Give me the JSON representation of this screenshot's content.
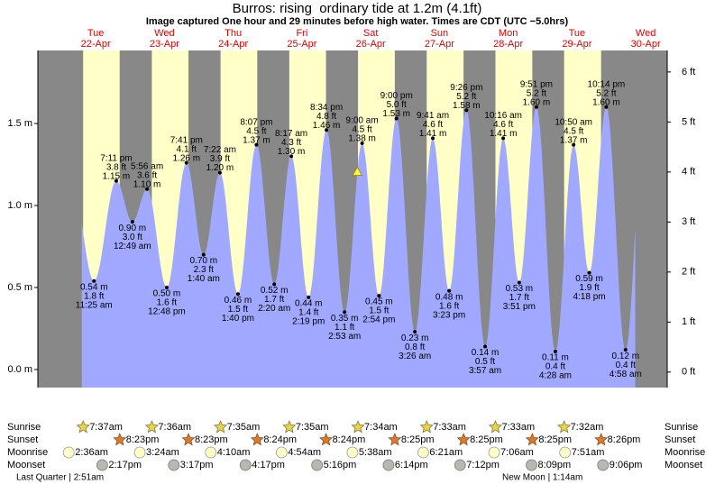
{
  "chart_data": {
    "type": "tide",
    "title": "Burros: rising  ordinary tide at 1.2m (4.1ft)",
    "subtitle": "Image captured One hour and 29 minutes before high water. Times are CDT (UTC −5.0hrs)",
    "current_m": 1.2,
    "ylim": [
      -0.11,
      1.945
    ],
    "yticks": [
      {
        "value": 0,
        "label": "0.0 m"
      },
      {
        "value": 0.5,
        "label": "0.5 m"
      },
      {
        "value": 1,
        "label": "1.0 m"
      },
      {
        "value": 1.5,
        "label": "1.5 m"
      }
    ],
    "y2lim": [
      -0.31,
      6.43
    ],
    "y2ticks": [
      {
        "value": 0,
        "label": "0 ft"
      },
      {
        "value": 1,
        "label": "1 ft"
      },
      {
        "value": 2,
        "label": "2 ft"
      },
      {
        "value": 3,
        "label": "3 ft"
      },
      {
        "value": 4,
        "label": "4 ft"
      },
      {
        "value": 5,
        "label": "5 ft"
      },
      {
        "value": 6,
        "label": "6 ft"
      }
    ],
    "row_labels": [
      "Sunrise",
      "Sunset",
      "Moonrise",
      "Moonset"
    ],
    "moon_phases": [
      "Last Quarter | 2:51am",
      "New Moon | 1:14am"
    ],
    "days": [
      {
        "name": "Tue",
        "date": "22-Apr",
        "sunrise": "7:37am",
        "sunset": "8:23pm",
        "moonrise": "2:36am",
        "moonset": "2:17pm",
        "extremes": [
          {
            "time": "11:25 am",
            "m": 0.54,
            "m_label": "0.54 m",
            "ft_label": "1.8 ft"
          },
          {
            "time": "7:11 pm",
            "m": 1.15,
            "m_label": "1.15 m",
            "ft_label": "3.8 ft"
          }
        ]
      },
      {
        "name": "Wed",
        "date": "23-Apr",
        "sunrise": "7:36am",
        "sunset": "8:23pm",
        "moonrise": "3:24am",
        "moonset": "3:17pm",
        "extremes": [
          {
            "time": "12:49 am",
            "m": 0.9,
            "m_label": "0.90 m",
            "ft_label": "3.0 ft"
          },
          {
            "time": "5:56 am",
            "m": 1.1,
            "m_label": "1.10 m",
            "ft_label": "3.6 ft"
          },
          {
            "time": "12:48 pm",
            "m": 0.5,
            "m_label": "0.50 m",
            "ft_label": "1.6 ft"
          },
          {
            "time": "7:41 pm",
            "m": 1.26,
            "m_label": "1.26 m",
            "ft_label": "4.1 ft"
          }
        ]
      },
      {
        "name": "Thu",
        "date": "24-Apr",
        "sunrise": "7:35am",
        "sunset": "8:24pm",
        "moonrise": "4:10am",
        "moonset": "4:17pm",
        "extremes": [
          {
            "time": "1:40 am",
            "m": 0.7,
            "m_label": "0.70 m",
            "ft_label": "2.3 ft"
          },
          {
            "time": "7:22 am",
            "m": 1.2,
            "m_label": "1.20 m",
            "ft_label": "3.9 ft"
          },
          {
            "time": "1:40 pm",
            "m": 0.46,
            "m_label": "0.46 m",
            "ft_label": "1.5 ft"
          },
          {
            "time": "8:07 pm",
            "m": 1.37,
            "m_label": "1.37 m",
            "ft_label": "4.5 ft"
          }
        ]
      },
      {
        "name": "Fri",
        "date": "25-Apr",
        "sunrise": "7:35am",
        "sunset": "8:24pm",
        "moonrise": "4:54am",
        "moonset": "5:16pm",
        "extremes": [
          {
            "time": "2:20 am",
            "m": 0.52,
            "m_label": "0.52 m",
            "ft_label": "1.7 ft"
          },
          {
            "time": "8:17 am",
            "m": 1.3,
            "m_label": "1.30 m",
            "ft_label": "4.3 ft"
          },
          {
            "time": "2:19 pm",
            "m": 0.44,
            "m_label": "0.44 m",
            "ft_label": "1.4 ft"
          },
          {
            "time": "8:34 pm",
            "m": 1.46,
            "m_label": "1.46 m",
            "ft_label": "4.8 ft"
          }
        ]
      },
      {
        "name": "Sat",
        "date": "26-Apr",
        "sunrise": "7:34am",
        "sunset": "8:25pm",
        "moonrise": "5:38am",
        "moonset": "6:14pm",
        "extremes": [
          {
            "time": "2:53 am",
            "m": 0.35,
            "m_label": "0.35 m",
            "ft_label": "1.1 ft"
          },
          {
            "time": "9:00 am",
            "m": 1.38,
            "m_label": "1.38 m",
            "ft_label": "4.5 ft"
          },
          {
            "time": "2:54 pm",
            "m": 0.45,
            "m_label": "0.45 m",
            "ft_label": "1.5 ft"
          },
          {
            "time": "9:00 pm",
            "m": 1.53,
            "m_label": "1.53 m",
            "ft_label": "5.0 ft"
          }
        ]
      },
      {
        "name": "Sun",
        "date": "27-Apr",
        "sunrise": "7:33am",
        "sunset": "8:25pm",
        "moonrise": "6:21am",
        "moonset": "7:12pm",
        "extremes": [
          {
            "time": "3:26 am",
            "m": 0.23,
            "m_label": "0.23 m",
            "ft_label": "0.8 ft"
          },
          {
            "time": "9:41 am",
            "m": 1.41,
            "m_label": "1.41 m",
            "ft_label": "4.6 ft"
          },
          {
            "time": "3:23 pm",
            "m": 0.48,
            "m_label": "0.48 m",
            "ft_label": "1.6 ft"
          },
          {
            "time": "9:26 pm",
            "m": 1.58,
            "m_label": "1.58 m",
            "ft_label": "5.2 ft"
          }
        ]
      },
      {
        "name": "Mon",
        "date": "28-Apr",
        "sunrise": "7:33am",
        "sunset": "8:25pm",
        "moonrise": "7:06am",
        "moonset": "8:09pm",
        "extremes": [
          {
            "time": "3:57 am",
            "m": 0.14,
            "m_label": "0.14 m",
            "ft_label": "0.5 ft"
          },
          {
            "time": "10:16 am",
            "m": 1.41,
            "m_label": "1.41 m",
            "ft_label": "4.6 ft"
          },
          {
            "time": "3:51 pm",
            "m": 0.53,
            "m_label": "0.53 m",
            "ft_label": "1.7 ft"
          },
          {
            "time": "9:51 pm",
            "m": 1.6,
            "m_label": "1.60 m",
            "ft_label": "5.2 ft"
          }
        ]
      },
      {
        "name": "Tue",
        "date": "29-Apr",
        "sunrise": "7:32am",
        "sunset": "8:26pm",
        "moonrise": "7:51am",
        "moonset": "9:06pm",
        "extremes": [
          {
            "time": "4:28 am",
            "m": 0.11,
            "m_label": "0.11 m",
            "ft_label": "0.4 ft"
          },
          {
            "time": "10:50 am",
            "m": 1.37,
            "m_label": "1.37 m",
            "ft_label": "4.5 ft"
          },
          {
            "time": "4:18 pm",
            "m": 0.59,
            "m_label": "0.59 m",
            "ft_label": "1.9 ft"
          },
          {
            "time": "10:14 pm",
            "m": 1.6,
            "m_label": "1.60 m",
            "ft_label": "5.2 ft"
          }
        ]
      },
      {
        "name": "Wed",
        "date": "30-Apr",
        "extremes": [
          {
            "time": "4:58 am",
            "m": 0.12,
            "m_label": "0.12 m",
            "ft_label": "0.4 ft"
          }
        ]
      }
    ]
  }
}
